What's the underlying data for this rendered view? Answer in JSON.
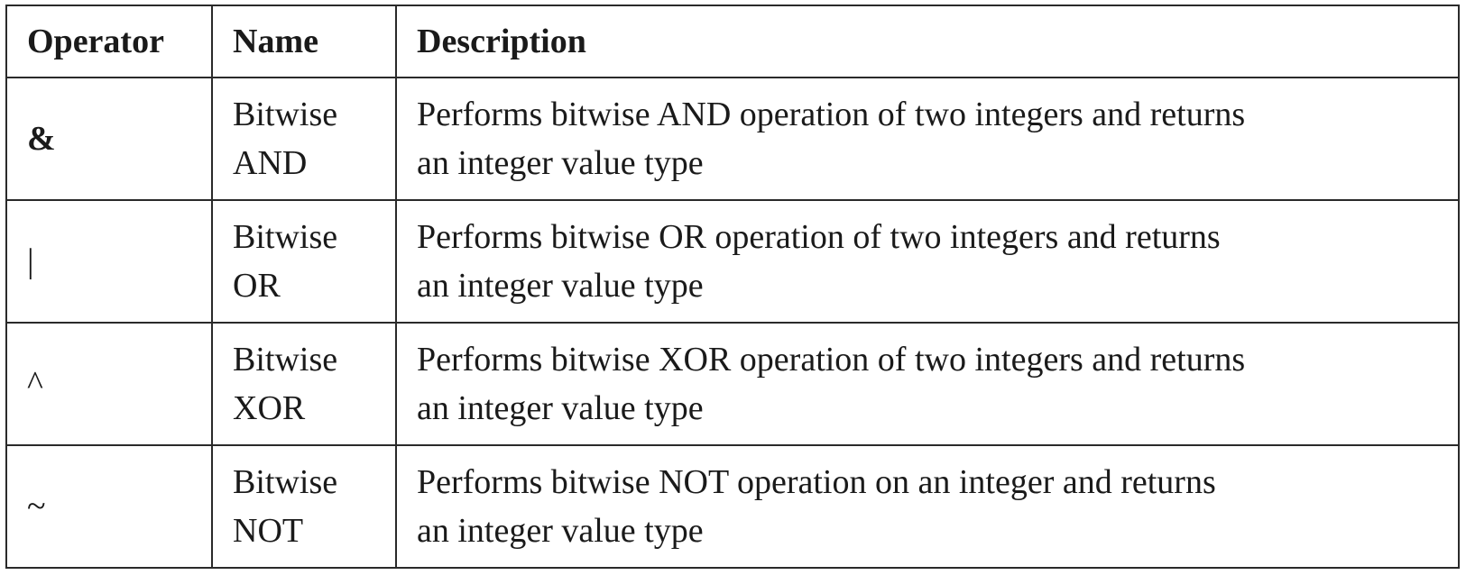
{
  "table": {
    "headers": [
      "Operator",
      "Name",
      "Description"
    ],
    "rows": [
      {
        "operator": "&",
        "name_line1": "Bitwise",
        "name_line2": "AND",
        "desc_line1": "Performs bitwise AND operation of two integers and returns",
        "desc_line2": "an integer value type"
      },
      {
        "operator": "|",
        "name_line1": "Bitwise",
        "name_line2": "OR",
        "desc_line1": "Performs bitwise OR operation of two integers and returns",
        "desc_line2": "an integer value type"
      },
      {
        "operator": "^",
        "name_line1": "Bitwise",
        "name_line2": "XOR",
        "desc_line1": "Performs bitwise XOR operation of two integers and returns",
        "desc_line2": "an integer value type"
      },
      {
        "operator": "~",
        "name_line1": "Bitwise",
        "name_line2": "NOT",
        "desc_line1": "Performs bitwise NOT operation on an integer and returns",
        "desc_line2": "an integer value type"
      }
    ]
  }
}
